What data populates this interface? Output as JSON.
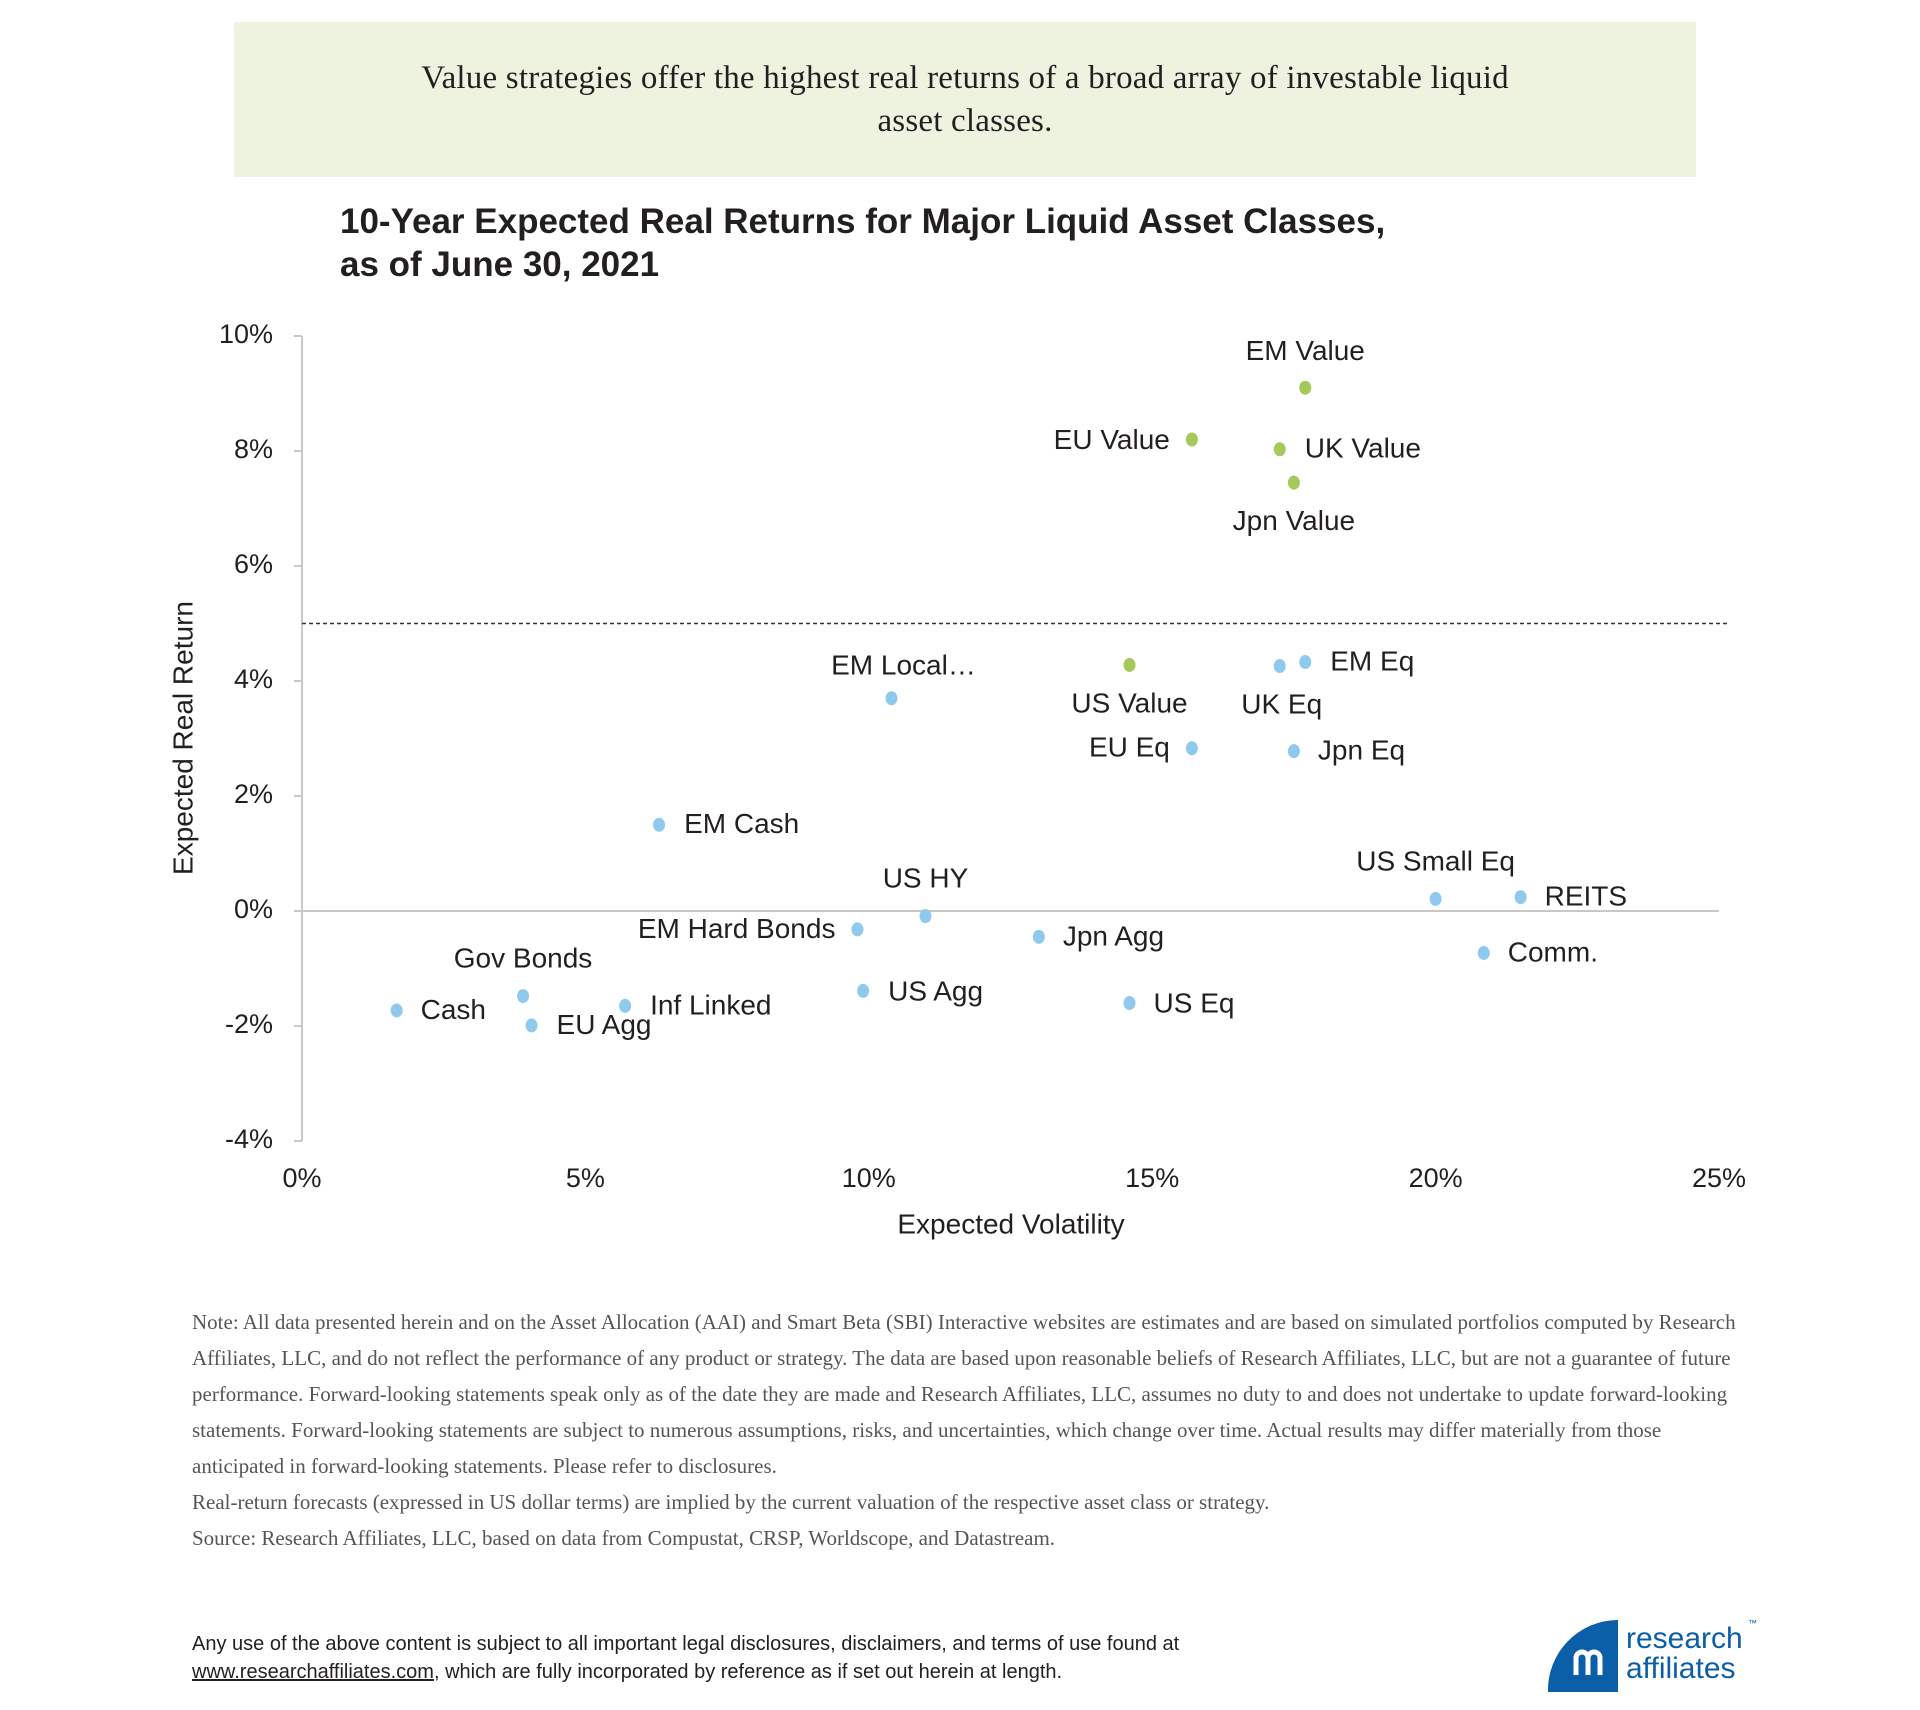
{
  "banner": {
    "text": "Value strategies offer the highest real returns of a broad array of investable liquid asset classes."
  },
  "chart_data": {
    "type": "scatter",
    "title": "10-Year Expected Real Returns for Major Liquid Asset Classes, as of June 30, 2021",
    "title_lines": [
      "10-Year Expected Real Returns for Major Liquid Asset Classes,",
      "as of June 30, 2021"
    ],
    "xlabel": "Expected Volatility",
    "ylabel": "Expected Real Return",
    "xlim": [
      0,
      25
    ],
    "ylim": [
      -4,
      10
    ],
    "x_ticks": [
      0,
      5,
      10,
      15,
      20,
      25
    ],
    "x_tick_labels": [
      "0%",
      "5%",
      "10%",
      "15%",
      "20%",
      "25%"
    ],
    "y_ticks": [
      10,
      8,
      6,
      4,
      2,
      0,
      -2,
      -4
    ],
    "y_tick_labels": [
      "10%",
      "8%",
      "6%",
      "4%",
      "2%",
      "0%",
      "-2%",
      "-4%"
    ],
    "reference_line": {
      "y": 5,
      "style": "dashed"
    },
    "grid": false,
    "colors": {
      "value": "#a5c95b",
      "other": "#8fcaee"
    },
    "points": [
      {
        "label": "EM Value",
        "x": 17.7,
        "y": 9.1,
        "group": "value"
      },
      {
        "label": "EU Value",
        "x": 15.7,
        "y": 8.2,
        "group": "value"
      },
      {
        "label": "UK Value",
        "x": 17.25,
        "y": 8.03,
        "group": "value"
      },
      {
        "label": "Jpn Value",
        "x": 17.5,
        "y": 7.45,
        "group": "value"
      },
      {
        "label": "US Value",
        "x": 14.6,
        "y": 4.28,
        "group": "value"
      },
      {
        "label": "UK Eq",
        "x": 17.25,
        "y": 4.26,
        "group": "other"
      },
      {
        "label": "EM Eq",
        "x": 17.7,
        "y": 4.33,
        "group": "other"
      },
      {
        "label": "EM Local…",
        "x": 10.4,
        "y": 3.7,
        "group": "other"
      },
      {
        "label": "EU Eq",
        "x": 15.7,
        "y": 2.83,
        "group": "other"
      },
      {
        "label": "Jpn Eq",
        "x": 17.5,
        "y": 2.78,
        "group": "other"
      },
      {
        "label": "EM Cash",
        "x": 6.3,
        "y": 1.5,
        "group": "other"
      },
      {
        "label": "US Small Eq",
        "x": 20.0,
        "y": 0.21,
        "group": "other"
      },
      {
        "label": "REITS",
        "x": 21.5,
        "y": 0.24,
        "group": "other"
      },
      {
        "label": "US HY",
        "x": 11.0,
        "y": -0.09,
        "group": "other"
      },
      {
        "label": "EM Hard Bonds",
        "x": 9.8,
        "y": -0.32,
        "group": "other"
      },
      {
        "label": "Jpn Agg",
        "x": 13.0,
        "y": -0.45,
        "group": "other"
      },
      {
        "label": "Comm.",
        "x": 20.85,
        "y": -0.73,
        "group": "other"
      },
      {
        "label": "US Agg",
        "x": 9.9,
        "y": -1.39,
        "group": "other"
      },
      {
        "label": "US Eq",
        "x": 14.6,
        "y": -1.6,
        "group": "other"
      },
      {
        "label": "Gov Bonds",
        "x": 3.9,
        "y": -1.48,
        "group": "other"
      },
      {
        "label": "Cash",
        "x": 1.67,
        "y": -1.73,
        "group": "other"
      },
      {
        "label": "Inf Linked",
        "x": 5.7,
        "y": -1.65,
        "group": "other"
      },
      {
        "label": "EU Agg",
        "x": 4.05,
        "y": -1.99,
        "group": "other"
      }
    ]
  },
  "notes": [
    "Note: All data presented herein and on the Asset Allocation (AAI) and Smart Beta (SBI) Interactive websites are estimates and are based on simulated portfolios computed by Research Affiliates, LLC, and do not reflect the performance of any product or strategy. The data are based upon reasonable beliefs of Research Affiliates, LLC, but are not a guarantee of future performance. Forward-looking statements speak only as of the date they are made and Research Affiliates, LLC, assumes no duty to and does not undertake to update forward-looking statements. Forward-looking statements are subject to numerous assumptions, risks, and uncertainties, which change over time. Actual results may differ materially from those anticipated in forward-looking statements. Please refer to disclosures.",
    "Real-return forecasts (expressed in US dollar terms) are implied by the current valuation of the respective asset class or strategy.",
    "Source: Research Affiliates, LLC, based on data from Compustat, CRSP, Worldscope, and Datastream."
  ],
  "footer": {
    "line1": "Any use of the above content is subject to all important legal disclosures, disclaimers, and terms of use found at",
    "link": "www.researchaffiliates.com",
    "line2_rest": ", which are fully incorporated by reference as if set out herein at length."
  },
  "logo": {
    "line1": "research",
    "line2": "affiliates",
    "tm": "™",
    "color": "#0b5ea8"
  }
}
